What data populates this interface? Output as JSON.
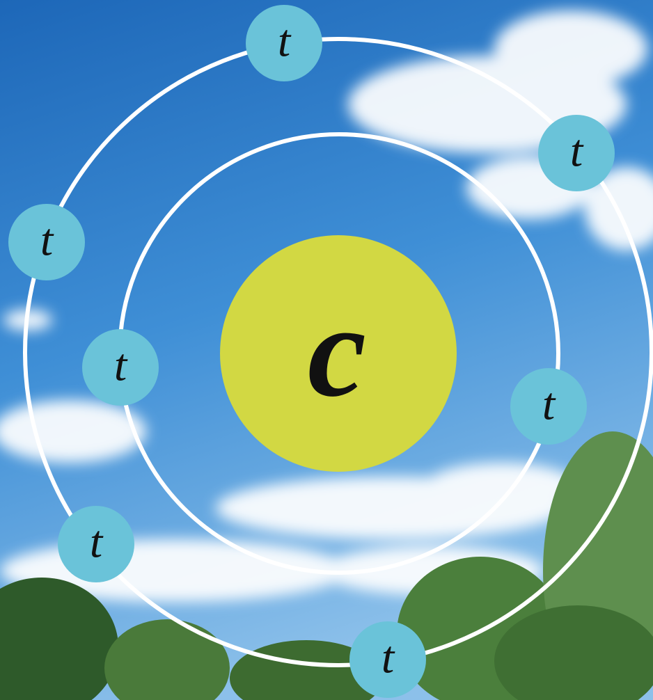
{
  "nucleus": {
    "label": "c"
  },
  "electrons": [
    {
      "label": "t"
    },
    {
      "label": "t"
    },
    {
      "label": "t"
    },
    {
      "label": "t"
    },
    {
      "label": "t"
    },
    {
      "label": "t"
    },
    {
      "label": "t"
    }
  ]
}
